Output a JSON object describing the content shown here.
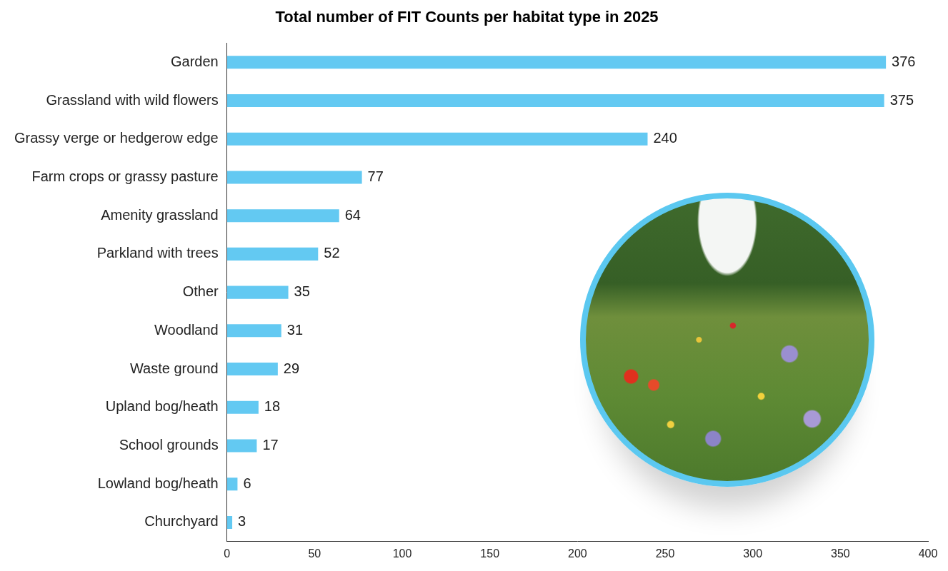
{
  "chart_data": {
    "type": "bar",
    "orientation": "horizontal",
    "title": "Total number of FIT Counts per habitat type in 2025",
    "categories": [
      "Garden",
      "Grassland with wild flowers",
      "Grassy verge or hedgerow edge",
      "Farm crops or grassy pasture",
      "Amenity grassland",
      "Parkland with trees",
      "Other",
      "Woodland",
      "Waste ground",
      "Upland bog/heath",
      "School grounds",
      "Lowland bog/heath",
      "Churchyard"
    ],
    "values": [
      376,
      375,
      240,
      77,
      64,
      52,
      35,
      31,
      29,
      18,
      17,
      6,
      3
    ],
    "color": "#63c9f2",
    "xlim": [
      0,
      400
    ],
    "xticks": [
      0,
      50,
      100,
      150,
      200,
      250,
      300,
      350,
      400
    ],
    "grid": false,
    "data_labels": true
  }
}
